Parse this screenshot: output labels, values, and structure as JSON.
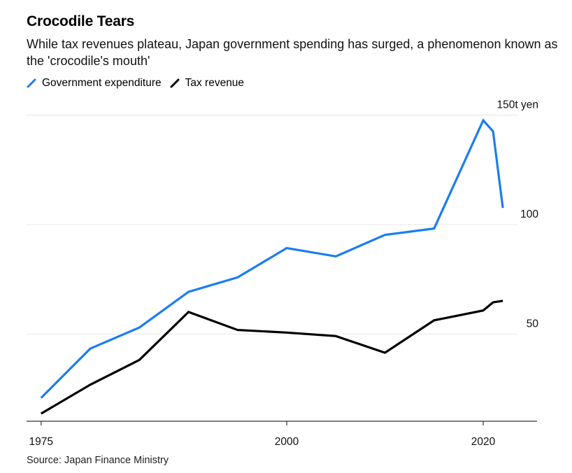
{
  "header": {
    "title": "Crocodile Tears",
    "subtitle": "While tax revenues plateau, Japan government spending has surged, a phenomenon known as the 'crocodile's mouth'"
  },
  "legend": [
    {
      "label": "Government expenditure",
      "color": "#1a7df0"
    },
    {
      "label": "Tax revenue",
      "color": "#000000"
    }
  ],
  "footer": {
    "source": "Source: Japan Finance Ministry"
  },
  "chart_data": {
    "type": "line",
    "title": "Crocodile Tears",
    "subtitle": "While tax revenues plateau, Japan government spending has surged, a phenomenon known as the 'crocodile's mouth'",
    "xlabel": "",
    "ylabel": "",
    "unit": "t yen",
    "xlim": [
      1975,
      2022
    ],
    "ylim": [
      10,
      150
    ],
    "grid": true,
    "legend_position": "top-left",
    "x_ticks": [
      {
        "value": 1975,
        "label": "1975"
      },
      {
        "value": 2000,
        "label": "2000"
      },
      {
        "value": 2020,
        "label": "2020"
      }
    ],
    "y_ticks": [
      {
        "value": 50,
        "label": "50"
      },
      {
        "value": 100,
        "label": "100"
      },
      {
        "value": 150,
        "label": "150t yen"
      }
    ],
    "x": [
      1975,
      1980,
      1985,
      1990,
      1995,
      2000,
      2005,
      2010,
      2015,
      2020,
      2021,
      2022
    ],
    "series": [
      {
        "name": "Government expenditure",
        "color": "#1a7df0",
        "values": [
          20.9,
          43.4,
          53.0,
          69.3,
          75.9,
          89.3,
          85.5,
          95.3,
          98.2,
          147.6,
          142.6,
          107.6
        ]
      },
      {
        "name": "Tax revenue",
        "color": "#000000",
        "values": [
          13.7,
          26.9,
          38.2,
          60.1,
          51.9,
          50.7,
          49.1,
          41.5,
          56.3,
          60.8,
          64.5,
          65.2
        ]
      }
    ]
  }
}
